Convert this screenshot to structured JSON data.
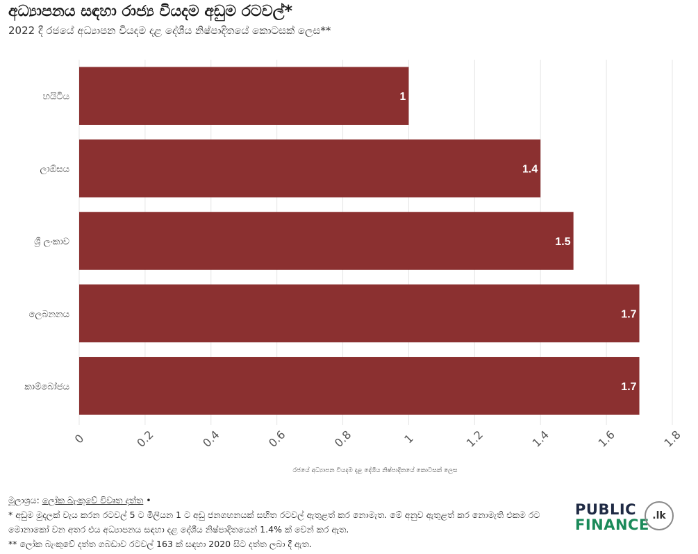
{
  "colors": {
    "bar": "#8b3030",
    "grid": "#e6e6e6",
    "logo_dark": "#1f2a44",
    "logo_green": "#1b8a5a"
  },
  "chart_data": {
    "type": "bar",
    "orientation": "horizontal",
    "title": "අධ්‍යාපනය සඳහා රාජ්‍ය වියදම අඩුම රටවල්*",
    "subtitle": "2022 දී රජයේ අධ්‍යාපන වියදම දළ දේශීය නිෂ්පාදිතයේ කොටසක් ලෙස**",
    "categories": [
      "හයිටිය",
      "ලාඕසය",
      "ශ්‍රී ලංකාව",
      "ලෙබනනය",
      "කාම්බෝජය"
    ],
    "values": [
      1,
      1.4,
      1.5,
      1.7,
      1.7
    ],
    "value_labels": [
      "1",
      "1.4",
      "1.5",
      "1.7",
      "1.7"
    ],
    "xlabel": "රජයේ අධ්‍යාපන වියදම දළ දේශීය නිෂ්පාදිතයේ කොටසක් ලෙස",
    "ylabel": "",
    "xlim": [
      0,
      1.8
    ],
    "xticks": [
      "0",
      "0.2",
      "0.4",
      "0.6",
      "0.8",
      "1",
      "1.2",
      "1.4",
      "1.6",
      "1.8"
    ],
    "grid": true,
    "legend": "none"
  },
  "footer": {
    "source_prefix": "මූලාශ්‍රය: ",
    "source_link": "ලෝක බැංකුවේ විවෘත දත්ත",
    "source_suffix": " •",
    "note1": "* අඩුම මුදලක් වැය කරන රටවල් 5 ට මිලියන 1 ට අඩු ජනගහනයක් සහිත රටවල් ඇතුළත් කර නොමැත. මේ අනුව ඇතුළත් කර නොමැති එකම රට මොනාකෝ වන අතර එය අධ්‍යාපනය සඳහා දළ දේශීය නිෂ්පාදිතයෙන් 1.4% ක් වෙන් කර ඇත.",
    "note2": "** ලෝක බැංකුවේ දත්ත ගබඩාව රටවල් 163 ක් සඳහා 2020 සිට දත්ත ලබා දී ඇත."
  },
  "logo": {
    "line1": "PUBLIC",
    "line2": "FINANCE",
    "badge": ".lk"
  }
}
